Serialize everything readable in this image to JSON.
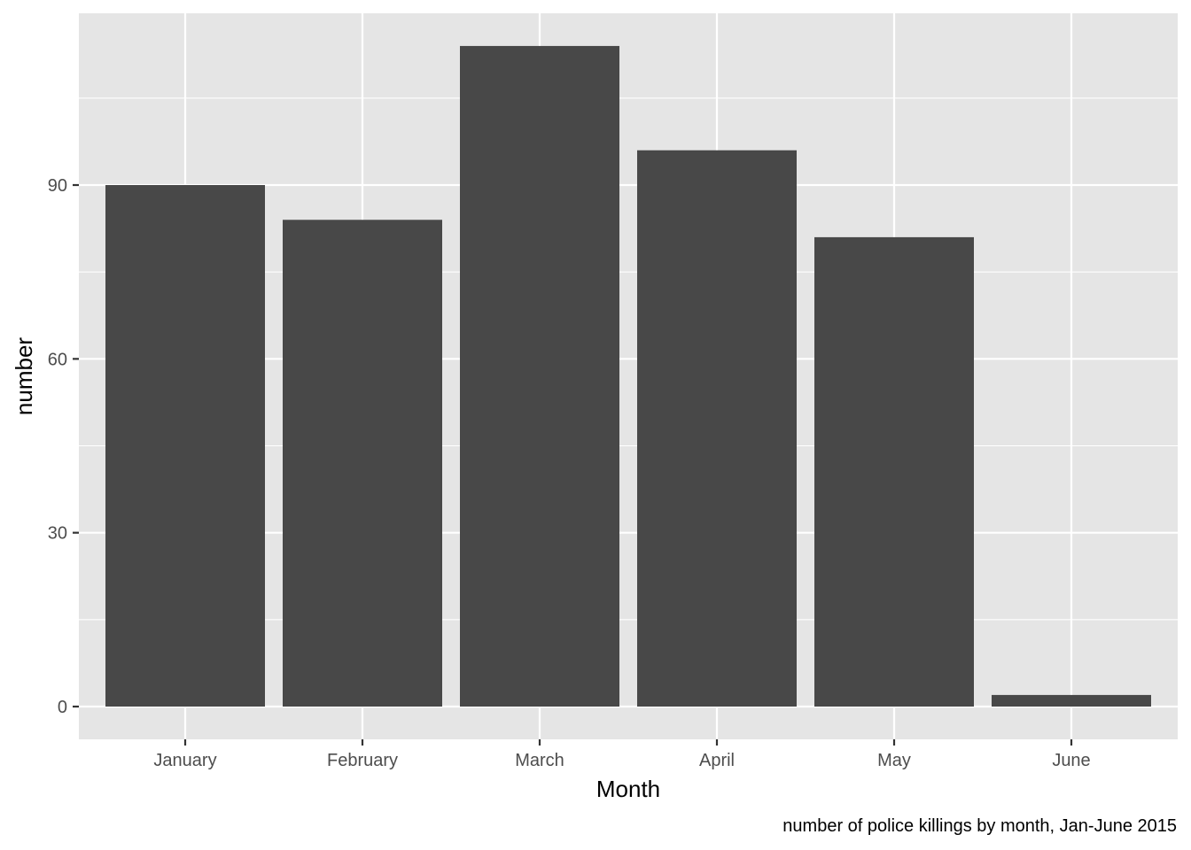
{
  "chart_data": {
    "type": "bar",
    "categories": [
      "January",
      "February",
      "March",
      "April",
      "May",
      "June"
    ],
    "values": [
      90,
      84,
      114,
      96,
      81,
      2
    ],
    "xlabel": "Month",
    "ylabel": "number",
    "caption": "number of police killings by month, Jan-June 2015",
    "ylim": [
      0,
      120
    ],
    "yticks": [
      0,
      30,
      60,
      90
    ],
    "ytick_labels": [
      "0",
      "30",
      "60",
      "90"
    ],
    "grid": true,
    "colors": {
      "bar": "#484848",
      "panel": "#e5e5e5",
      "grid": "#ffffff",
      "tick_text": "#4d4d4d",
      "axis_tick": "#333333"
    }
  }
}
